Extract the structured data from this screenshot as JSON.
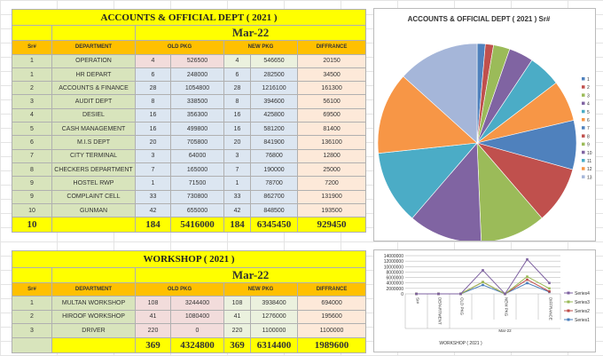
{
  "accounts": {
    "title": "ACCOUNTS & OFFICIAL DEPT    ( 2021  )",
    "month": "Mar-22",
    "headers": [
      "Sr#",
      "DEPARTMENT",
      "OLD PKG",
      "NEW PKG",
      "DIFFRANCE"
    ],
    "rows": [
      [
        "1",
        "OPERATION",
        "4",
        "526500",
        "4",
        "546650",
        "20150"
      ],
      [
        "1",
        "HR DEPART",
        "6",
        "248000",
        "6",
        "282500",
        "34500"
      ],
      [
        "2",
        "ACCOUNTS & FINANCE",
        "28",
        "1054800",
        "28",
        "1216100",
        "161300"
      ],
      [
        "3",
        "AUDIT DEPT",
        "8",
        "338500",
        "8",
        "394600",
        "56100"
      ],
      [
        "4",
        "DESIEL",
        "16",
        "356300",
        "16",
        "425800",
        "69500"
      ],
      [
        "5",
        "CASH MANAGEMENT",
        "16",
        "499800",
        "16",
        "581200",
        "81400"
      ],
      [
        "6",
        "M.I.S DEPT",
        "20",
        "705800",
        "20",
        "841900",
        "136100"
      ],
      [
        "7",
        "CITY TERMINAL",
        "3",
        "64000",
        "3",
        "76800",
        "12800"
      ],
      [
        "8",
        "CHECKERS DEPARTMENT",
        "7",
        "165000",
        "7",
        "190000",
        "25000"
      ],
      [
        "9",
        "HOSTEL RWP",
        "1",
        "71500",
        "1",
        "78700",
        "7200"
      ],
      [
        "9",
        "COMPLAINT CELL",
        "33",
        "730800",
        "33",
        "862700",
        "131900"
      ],
      [
        "10",
        "GUNMAN",
        "42",
        "655000",
        "42",
        "848500",
        "193500"
      ]
    ],
    "total": [
      "10",
      "",
      "184",
      "5416000",
      "184",
      "6345450",
      "929450"
    ]
  },
  "workshop": {
    "title": "WORKSHOP    ( 2021  )",
    "month": "Mar-22",
    "headers": [
      "Sr#",
      "DEPARTMENT",
      "OLD PKG",
      "NEW PKG",
      "DIFFRANCE"
    ],
    "rows": [
      [
        "1",
        "MULTAN WORKSHOP",
        "108",
        "3244400",
        "108",
        "3938400",
        "694000"
      ],
      [
        "2",
        "HIROOF WORKSHOP",
        "41",
        "1080400",
        "41",
        "1276000",
        "195600"
      ],
      [
        "3",
        "DRIVER",
        "220",
        "0",
        "220",
        "1100000",
        "1100000"
      ]
    ],
    "total": [
      "",
      "",
      "369",
      "4324800",
      "369",
      "6314400",
      "1989600"
    ]
  },
  "chart_data": [
    {
      "type": "pie",
      "title": "ACCOUNTS & OFFICIAL DEPT    ( 2021  ) Sr#",
      "categories": [
        "1",
        "2",
        "3",
        "4",
        "5",
        "6",
        "7",
        "8",
        "9",
        "10",
        "11",
        "12",
        "13"
      ],
      "values": [
        1,
        1,
        2,
        3,
        4,
        5,
        6,
        7,
        8,
        9,
        9,
        10,
        10
      ],
      "colors": [
        "#4f81bd",
        "#c0504d",
        "#9bbb59",
        "#8064a2",
        "#4bacc6",
        "#f79646",
        "#4f81bd",
        "#c0504d",
        "#9bbb59",
        "#8064a2",
        "#4bacc6",
        "#f79646",
        "#a5b6d9"
      ],
      "legend": "right"
    },
    {
      "type": "line",
      "stacked": true,
      "categories": [
        "Sr#",
        "DEPARTMENT",
        "OLD PKG",
        "",
        "NEW PKG",
        "",
        "DIFFRANCE"
      ],
      "group_labels": [
        "Mar-22",
        "WORKSHOP    ( 2021  )"
      ],
      "ylim": [
        0,
        14000000
      ],
      "yticks": [
        "0",
        "2000000",
        "4000000",
        "6000000",
        "8000000",
        "10000000",
        "12000000",
        "14000000"
      ],
      "series": [
        {
          "name": "Series1",
          "color": "#4a7ebb",
          "values": [
            1,
            0,
            108,
            3244400,
            108,
            3938400,
            694000
          ]
        },
        {
          "name": "Series2",
          "color": "#be4b48",
          "values": [
            2,
            0,
            41,
            1080400,
            41,
            1276000,
            195600
          ]
        },
        {
          "name": "Series3",
          "color": "#98b954",
          "values": [
            3,
            0,
            220,
            0,
            220,
            1100000,
            1100000
          ]
        },
        {
          "name": "Series4",
          "color": "#7d60a0",
          "values": [
            0,
            0,
            369,
            4324800,
            369,
            6314400,
            1989600
          ]
        }
      ],
      "legend": "right"
    }
  ]
}
